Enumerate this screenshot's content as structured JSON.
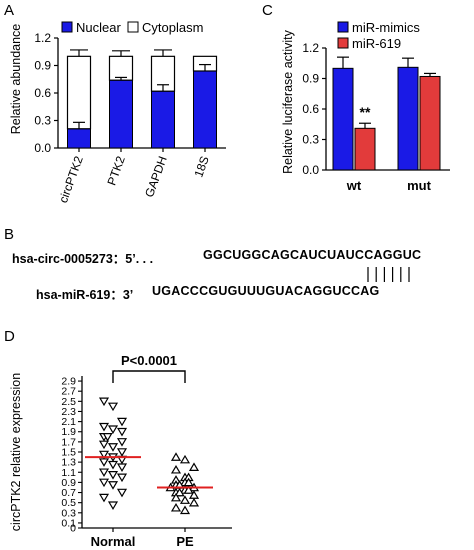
{
  "panel_letters": {
    "a": "A",
    "b": "B",
    "c": "C",
    "d": "D"
  },
  "colors": {
    "blue": "#1a1ae6",
    "red": "#e23b3b",
    "median": "#e02020",
    "black": "#000000"
  },
  "chart_data": [
    {
      "id": "A",
      "type": "bar",
      "stacked": true,
      "categories": [
        "circPTK2",
        "PTK2",
        "GAPDH",
        "18S"
      ],
      "series": [
        {
          "name": "Nuclear",
          "color": "#1a1ae6",
          "values": [
            0.21,
            0.74,
            0.62,
            0.84
          ],
          "errors": [
            0.07,
            0.03,
            0.07,
            0.07
          ]
        },
        {
          "name": "Cytoplasm",
          "color": "#ffffff",
          "values": [
            0.79,
            0.26,
            0.38,
            0.16
          ],
          "errors": [
            0.07,
            0.06,
            0.07,
            0.0
          ]
        }
      ],
      "xlabel": "",
      "ylabel": "Relative abundance",
      "ylim": [
        0,
        1.2
      ],
      "yticks": [
        "0.0",
        "0.3",
        "0.6",
        "0.9",
        "1.2"
      ],
      "legend": "top"
    },
    {
      "id": "C",
      "type": "bar",
      "categories": [
        "wt",
        "mut"
      ],
      "series": [
        {
          "name": "miR-mimics",
          "color": "#1a1ae6",
          "values": [
            1.0,
            1.01
          ],
          "errors": [
            0.11,
            0.09
          ]
        },
        {
          "name": "miR-619",
          "color": "#e23b3b",
          "values": [
            0.41,
            0.92
          ],
          "errors": [
            0.05,
            0.03
          ]
        }
      ],
      "annotations": [
        {
          "category": "wt",
          "series": "miR-619",
          "text": "**"
        }
      ],
      "xlabel": "",
      "ylabel": "Relative luciferase activity",
      "ylim": [
        0,
        1.2
      ],
      "yticks": [
        "0.0",
        "0.3",
        "0.6",
        "0.9",
        "1.2"
      ],
      "legend": "top-right"
    },
    {
      "id": "D",
      "type": "scatter",
      "categories": [
        "Normal",
        "PE"
      ],
      "groups": [
        {
          "name": "Normal",
          "marker": "triangle-down",
          "median": 1.4,
          "values": [
            2.5,
            2.4,
            2.1,
            2.0,
            1.95,
            1.9,
            1.8,
            1.8,
            1.7,
            1.65,
            1.6,
            1.5,
            1.45,
            1.4,
            1.35,
            1.3,
            1.25,
            1.2,
            1.1,
            1.05,
            1.0,
            0.9,
            0.85,
            0.7,
            0.6,
            0.45
          ]
        },
        {
          "name": "PE",
          "marker": "triangle-up",
          "median": 0.8,
          "values": [
            1.4,
            1.35,
            1.2,
            1.15,
            1.0,
            1.0,
            0.95,
            0.9,
            0.9,
            0.85,
            0.85,
            0.8,
            0.8,
            0.75,
            0.75,
            0.7,
            0.7,
            0.65,
            0.6,
            0.55,
            0.5,
            0.4,
            0.35
          ]
        }
      ],
      "significance": "P<0.0001",
      "xlabel": "",
      "ylabel": "circPTK2 relative expression",
      "ylim": [
        0,
        3.0
      ],
      "yticks": [
        "0",
        "0.1",
        "0.3",
        "0.5",
        "0.7",
        "0.9",
        "1.1",
        "1.3",
        "1.5",
        "1.7",
        "1.9",
        "2.1",
        "2.3",
        "2.5",
        "2.7",
        "2.9"
      ]
    }
  ],
  "sequence_panel": {
    "circ_label": "hsa-circ-0005273：5’. . .",
    "circ_seq": "GGCUGGCAGCAUCUAUCCAGGUC",
    "mir_label": "hsa-miR-619：3’",
    "mir_seq": "UGACCCGUGUUUGUACAGGUCCAG",
    "pair_count": 6
  }
}
